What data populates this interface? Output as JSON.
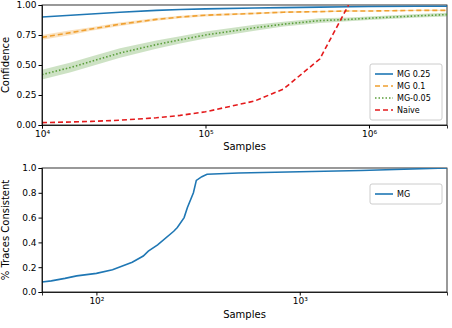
{
  "chart_data": [
    {
      "type": "line",
      "x_label": "Samples",
      "y_label": "Confidence",
      "log": "x",
      "legend": "lower right",
      "xlim": [
        10000,
        3000000
      ],
      "ylim": [
        0,
        1
      ],
      "xticks": [
        {
          "value": 10000,
          "label": "10⁴"
        },
        {
          "value": 100000,
          "label": "10⁵"
        },
        {
          "value": 1000000,
          "label": "10⁶"
        }
      ],
      "yticks": [
        {
          "value": 0,
          "label": "0.00"
        },
        {
          "value": 0.25,
          "label": "0.25"
        },
        {
          "value": 0.5,
          "label": "0.50"
        },
        {
          "value": 0.75,
          "label": "0.75"
        },
        {
          "value": 1,
          "label": "1.00"
        }
      ],
      "x": [
        10000,
        15000,
        20000,
        30000,
        50000,
        70000,
        100000,
        200000,
        300000,
        500000,
        750000,
        1000000,
        2000000,
        3000000
      ],
      "series": [
        {
          "name": "MG 0.25",
          "color": "#1f77b4",
          "line_style": "solid",
          "values": [
            0.9,
            0.915,
            0.925,
            0.94,
            0.955,
            0.962,
            0.968,
            0.975,
            0.978,
            0.982,
            0.985,
            0.987,
            0.99,
            0.99
          ]
        },
        {
          "name": "MG 0.1",
          "color": "#f0a030",
          "line_style": "dashed",
          "values": [
            0.73,
            0.77,
            0.8,
            0.84,
            0.88,
            0.9,
            0.915,
            0.93,
            0.94,
            0.945,
            0.95,
            0.95,
            0.955,
            0.955
          ],
          "lower": [
            0.71,
            0.75,
            0.785,
            0.825,
            0.868,
            0.89,
            0.905,
            0.922,
            0.933,
            0.939,
            0.944,
            0.945,
            0.95,
            0.95
          ],
          "upper": [
            0.75,
            0.79,
            0.815,
            0.855,
            0.892,
            0.91,
            0.925,
            0.938,
            0.947,
            0.951,
            0.956,
            0.955,
            0.96,
            0.96
          ]
        },
        {
          "name": "MG-0.05",
          "color": "#5a9e3a",
          "line_style": "dotted",
          "values": [
            0.42,
            0.48,
            0.53,
            0.6,
            0.67,
            0.71,
            0.75,
            0.81,
            0.84,
            0.87,
            0.88,
            0.89,
            0.91,
            0.92
          ],
          "lower": [
            0.38,
            0.44,
            0.49,
            0.56,
            0.635,
            0.68,
            0.72,
            0.785,
            0.82,
            0.85,
            0.865,
            0.875,
            0.895,
            0.905
          ],
          "upper": [
            0.46,
            0.52,
            0.57,
            0.64,
            0.705,
            0.74,
            0.78,
            0.835,
            0.86,
            0.89,
            0.895,
            0.905,
            0.925,
            0.935
          ]
        },
        {
          "name": "Naive",
          "color": "#e41a1c",
          "line_style": "dashed",
          "values": [
            0.02,
            0.025,
            0.03,
            0.04,
            0.06,
            0.08,
            0.11,
            0.2,
            0.3,
            0.55,
            1.0,
            null,
            null,
            null
          ]
        }
      ]
    },
    {
      "type": "line",
      "x_label": "Samples",
      "y_label": "% Traces Consistent",
      "log": "x",
      "legend": "upper right",
      "xlim": [
        54,
        5300
      ],
      "ylim": [
        0,
        1
      ],
      "xticks": [
        {
          "value": 100,
          "label": "10²"
        },
        {
          "value": 1000,
          "label": "10³"
        }
      ],
      "yticks": [
        {
          "value": 0,
          "label": "0.0"
        },
        0.2,
        0.4,
        0.6,
        0.8,
        {
          "value": 1,
          "label": "1.0"
        }
      ],
      "x": [
        54,
        60,
        70,
        80,
        100,
        120,
        150,
        170,
        180,
        200,
        240,
        250,
        270,
        280,
        300,
        310,
        330,
        350,
        500,
        1000,
        2000,
        5300
      ],
      "series": [
        {
          "name": "MG",
          "color": "#1f77b4",
          "line_style": "solid",
          "values": [
            0.08,
            0.09,
            0.11,
            0.13,
            0.15,
            0.18,
            0.24,
            0.29,
            0.33,
            0.38,
            0.49,
            0.52,
            0.6,
            0.68,
            0.8,
            0.9,
            0.93,
            0.95,
            0.96,
            0.97,
            0.98,
            1.0
          ]
        }
      ]
    }
  ]
}
